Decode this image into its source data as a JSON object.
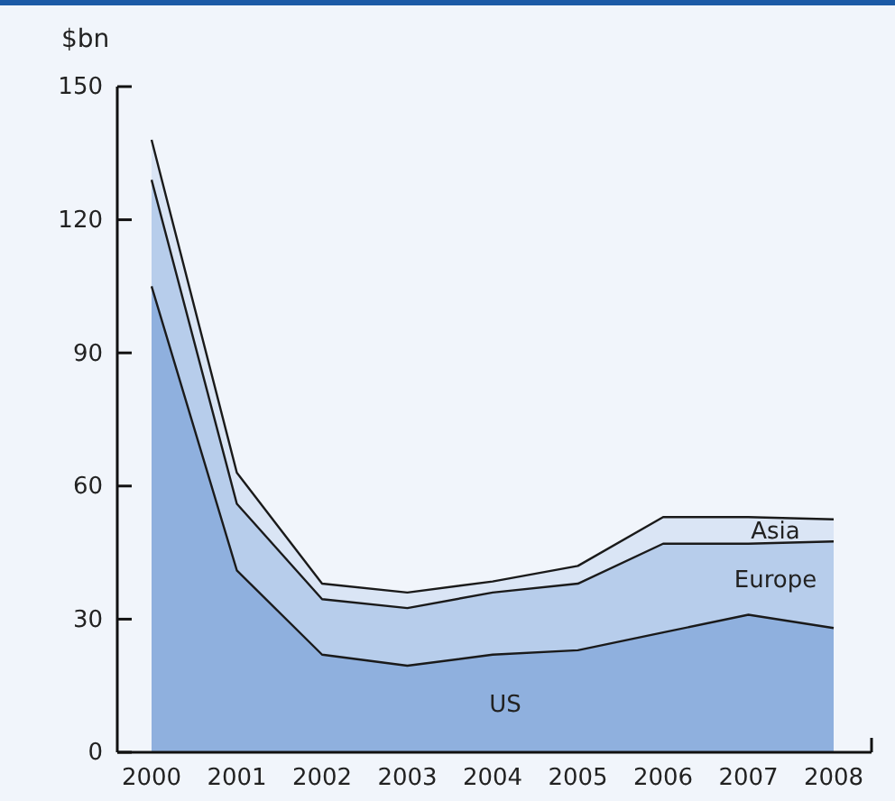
{
  "chart_data": {
    "type": "area",
    "stacked": true,
    "ylabel": "$bn",
    "categories": [
      "2000",
      "2001",
      "2002",
      "2003",
      "2004",
      "2005",
      "2006",
      "2007",
      "2008"
    ],
    "ylim": [
      0,
      150
    ],
    "yticks": [
      0,
      30,
      60,
      90,
      120,
      150
    ],
    "legend": false,
    "grid": false,
    "series": [
      {
        "name": "US",
        "color": "#8fb0de",
        "values": [
          105,
          41,
          22,
          19.5,
          22,
          23,
          27,
          31,
          28
        ]
      },
      {
        "name": "Europe",
        "color": "#b7cdeb",
        "values": [
          24,
          15,
          12.5,
          13,
          14,
          15,
          20,
          16,
          19.5
        ]
      },
      {
        "name": "Asia",
        "color": "#dae5f5",
        "values": [
          9,
          7,
          3.5,
          3.5,
          2.5,
          4,
          6,
          6,
          5
        ]
      }
    ]
  }
}
